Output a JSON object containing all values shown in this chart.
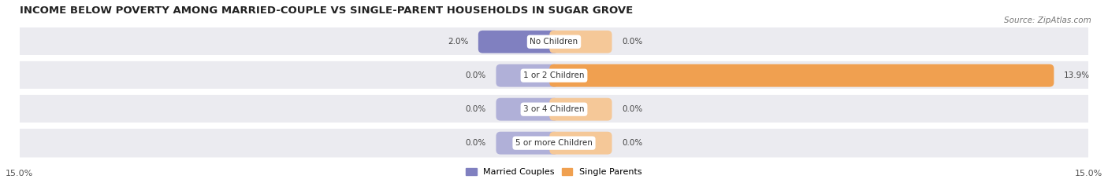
{
  "title": "INCOME BELOW POVERTY AMONG MARRIED-COUPLE VS SINGLE-PARENT HOUSEHOLDS IN SUGAR GROVE",
  "source": "Source: ZipAtlas.com",
  "categories": [
    "No Children",
    "1 or 2 Children",
    "3 or 4 Children",
    "5 or more Children"
  ],
  "married_values": [
    2.0,
    0.0,
    0.0,
    0.0
  ],
  "single_values": [
    0.0,
    13.9,
    0.0,
    0.0
  ],
  "married_color": "#8080c0",
  "single_color": "#f0a050",
  "married_min_color": "#b0b0d8",
  "single_min_color": "#f5c898",
  "axis_limit": 15.0,
  "min_bar_val": 1.5,
  "title_fontsize": 9.5,
  "source_fontsize": 7.5,
  "label_fontsize": 7.5,
  "cat_fontsize": 7.5,
  "tick_fontsize": 8,
  "legend_fontsize": 8,
  "background_color": "#ffffff",
  "row_bg_color": "#ebebf0",
  "row_line_color": "#d8d8e0",
  "label_color": "#444444"
}
